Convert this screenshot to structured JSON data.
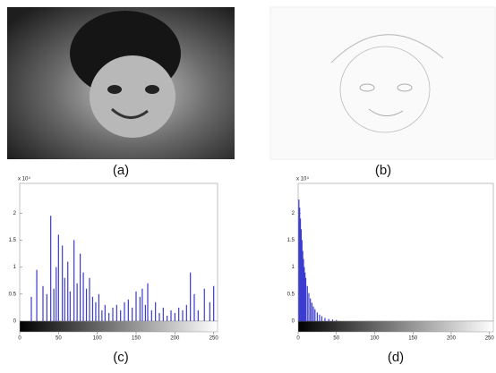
{
  "panels": {
    "a": "(a)",
    "b": "(b)",
    "c": "(c)",
    "d": "(d)"
  },
  "chart_data": [
    {
      "type": "bar",
      "y_multiplier": "x 10⁴",
      "color": "#3b3bd0",
      "x": [
        15,
        22,
        30,
        35,
        40,
        44,
        47,
        50,
        55,
        58,
        62,
        65,
        70,
        74,
        78,
        82,
        86,
        90,
        94,
        98,
        102,
        106,
        110,
        115,
        120,
        125,
        130,
        135,
        140,
        145,
        150,
        155,
        158,
        162,
        165,
        170,
        175,
        180,
        185,
        190,
        195,
        200,
        205,
        210,
        215,
        220,
        225,
        230,
        238,
        245,
        250
      ],
      "values": [
        0.45,
        0.95,
        0.65,
        0.5,
        1.95,
        0.6,
        1.0,
        1.6,
        1.4,
        0.8,
        1.1,
        0.55,
        1.5,
        0.7,
        1.25,
        0.9,
        0.6,
        0.8,
        0.45,
        0.35,
        0.5,
        0.2,
        0.3,
        0.15,
        0.25,
        0.3,
        0.2,
        0.35,
        0.4,
        0.25,
        0.55,
        0.45,
        0.6,
        0.3,
        0.7,
        0.2,
        0.35,
        0.15,
        0.25,
        0.1,
        0.2,
        0.15,
        0.25,
        0.2,
        0.3,
        0.9,
        0.5,
        0.2,
        0.6,
        0.35,
        0.65
      ],
      "xlim": [
        0,
        255
      ],
      "xticks": [
        0,
        50,
        100,
        150,
        200,
        250
      ],
      "ylim": [
        0,
        2.55
      ],
      "yticks": [
        0,
        0.5,
        1,
        1.5,
        2
      ]
    },
    {
      "type": "bar",
      "y_multiplier": "x 10⁴",
      "color": "#3b3bd0",
      "x": [
        1,
        2,
        3,
        4,
        5,
        6,
        7,
        8,
        9,
        10,
        12,
        14,
        16,
        18,
        20,
        22,
        25,
        28,
        31,
        35,
        40,
        45,
        50
      ],
      "values": [
        2.25,
        2.1,
        1.9,
        1.7,
        1.5,
        1.3,
        1.15,
        1.0,
        0.9,
        0.8,
        0.65,
        0.52,
        0.42,
        0.34,
        0.27,
        0.22,
        0.16,
        0.12,
        0.09,
        0.06,
        0.04,
        0.03,
        0.02
      ],
      "xlim": [
        0,
        255
      ],
      "xticks": [
        0,
        50,
        100,
        150,
        200,
        250
      ],
      "ylim": [
        0,
        2.55
      ],
      "yticks": [
        0,
        0.5,
        1,
        1.5,
        2
      ]
    }
  ]
}
